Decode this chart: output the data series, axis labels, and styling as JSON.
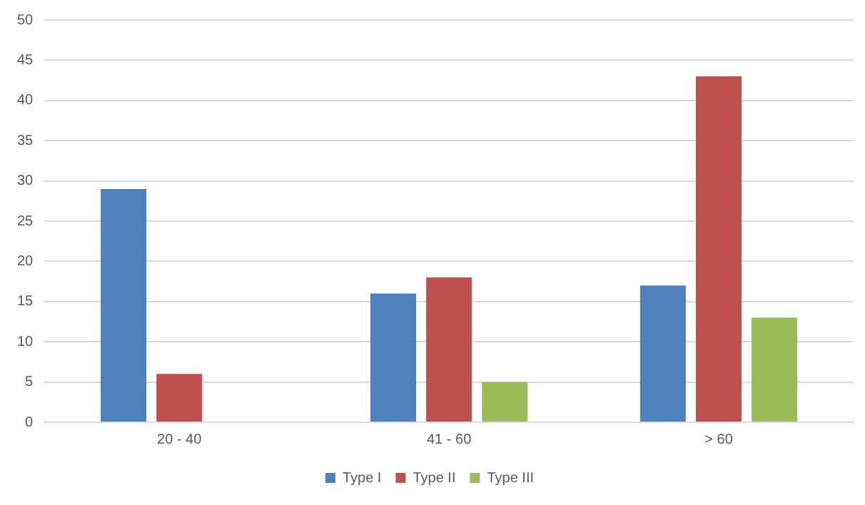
{
  "chart_data": {
    "type": "bar",
    "categories": [
      "20 - 40",
      "41 - 60",
      "> 60"
    ],
    "series": [
      {
        "name": "Type I",
        "color": "#4f81bd",
        "values": [
          29,
          16,
          17
        ]
      },
      {
        "name": "Type II",
        "color": "#c0504d",
        "values": [
          6,
          18,
          43
        ]
      },
      {
        "name": "Type III",
        "color": "#9bbb59",
        "values": [
          0,
          5,
          13
        ]
      }
    ],
    "ylim": [
      0,
      50
    ],
    "yticks": [
      0,
      5,
      10,
      15,
      20,
      25,
      30,
      35,
      40,
      45,
      50
    ],
    "grid": "y",
    "legend": "bottom"
  }
}
